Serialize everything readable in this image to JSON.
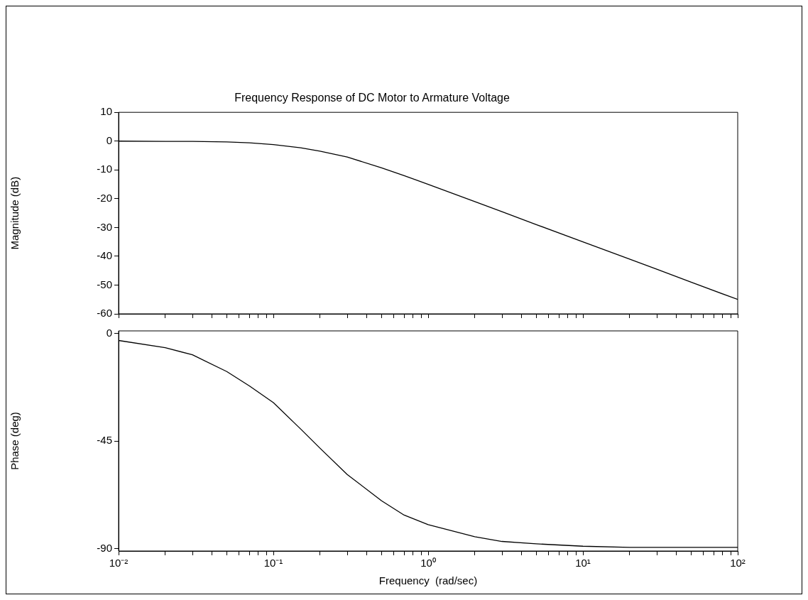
{
  "chart_data": [
    {
      "type": "line",
      "title": "Frequency Response of DC Motor to Armature Voltage",
      "ylabel": "Magnitude (dB)",
      "log": "x",
      "grid": false,
      "tick_labels": "y",
      "xlim": [
        0.01,
        100
      ],
      "ylim": [
        -60,
        10
      ],
      "xticks": [
        {
          "value": 0.01,
          "label": null
        },
        {
          "value": 0.02,
          "label": null
        },
        {
          "value": 0.03,
          "label": null
        },
        {
          "value": 0.04,
          "label": null
        },
        {
          "value": 0.05,
          "label": null
        },
        {
          "value": 0.06,
          "label": null
        },
        {
          "value": 0.07,
          "label": null
        },
        {
          "value": 0.08,
          "label": null
        },
        {
          "value": 0.09,
          "label": null
        },
        {
          "value": 0.1,
          "label": null
        },
        {
          "value": 0.2,
          "label": null
        },
        {
          "value": 0.3,
          "label": null
        },
        {
          "value": 0.4,
          "label": null
        },
        {
          "value": 0.5,
          "label": null
        },
        {
          "value": 0.6,
          "label": null
        },
        {
          "value": 0.7,
          "label": null
        },
        {
          "value": 0.8,
          "label": null
        },
        {
          "value": 0.9,
          "label": null
        },
        {
          "value": 1,
          "label": null
        },
        {
          "value": 2,
          "label": null
        },
        {
          "value": 3,
          "label": null
        },
        {
          "value": 4,
          "label": null
        },
        {
          "value": 5,
          "label": null
        },
        {
          "value": 6,
          "label": null
        },
        {
          "value": 7,
          "label": null
        },
        {
          "value": 8,
          "label": null
        },
        {
          "value": 9,
          "label": null
        },
        {
          "value": 10,
          "label": null
        },
        {
          "value": 20,
          "label": null
        },
        {
          "value": 30,
          "label": null
        },
        {
          "value": 40,
          "label": null
        },
        {
          "value": 50,
          "label": null
        },
        {
          "value": 60,
          "label": null
        },
        {
          "value": 70,
          "label": null
        },
        {
          "value": 80,
          "label": null
        },
        {
          "value": 90,
          "label": null
        },
        {
          "value": 100,
          "label": null
        }
      ],
      "yticks": [
        -60,
        -50,
        -40,
        -30,
        -20,
        -10,
        0,
        10
      ],
      "x": [
        0.01,
        0.02,
        0.03,
        0.05,
        0.07,
        0.1,
        0.15,
        0.2,
        0.3,
        0.5,
        0.7,
        1,
        2,
        3,
        5,
        10,
        20,
        30,
        50,
        100
      ],
      "series": [
        {
          "color": "#000000",
          "values": [
            0,
            -0.1,
            -0.1,
            -0.3,
            -0.6,
            -1.2,
            -2.3,
            -3.5,
            -5.5,
            -9.3,
            -12,
            -15,
            -21,
            -24.5,
            -29,
            -35,
            -41,
            -44.5,
            -49,
            -55
          ]
        }
      ]
    },
    {
      "type": "line",
      "xlabel": "Frequency  (rad/sec)",
      "ylabel": "Phase (deg)",
      "log": "x",
      "grid": false,
      "xlim": [
        0.01,
        100
      ],
      "ylim": [
        -91,
        1
      ],
      "xticks": [
        {
          "value": 0.01,
          "label": "10⁻²"
        },
        {
          "value": 0.02,
          "label": null
        },
        {
          "value": 0.03,
          "label": null
        },
        {
          "value": 0.04,
          "label": null
        },
        {
          "value": 0.05,
          "label": null
        },
        {
          "value": 0.06,
          "label": null
        },
        {
          "value": 0.07,
          "label": null
        },
        {
          "value": 0.08,
          "label": null
        },
        {
          "value": 0.09,
          "label": null
        },
        {
          "value": 0.1,
          "label": "10⁻¹"
        },
        {
          "value": 0.2,
          "label": null
        },
        {
          "value": 0.3,
          "label": null
        },
        {
          "value": 0.4,
          "label": null
        },
        {
          "value": 0.5,
          "label": null
        },
        {
          "value": 0.6,
          "label": null
        },
        {
          "value": 0.7,
          "label": null
        },
        {
          "value": 0.8,
          "label": null
        },
        {
          "value": 0.9,
          "label": null
        },
        {
          "value": 1,
          "label": "10⁰"
        },
        {
          "value": 2,
          "label": null
        },
        {
          "value": 3,
          "label": null
        },
        {
          "value": 4,
          "label": null
        },
        {
          "value": 5,
          "label": null
        },
        {
          "value": 6,
          "label": null
        },
        {
          "value": 7,
          "label": null
        },
        {
          "value": 8,
          "label": null
        },
        {
          "value": 9,
          "label": null
        },
        {
          "value": 10,
          "label": "10¹"
        },
        {
          "value": 20,
          "label": null
        },
        {
          "value": 30,
          "label": null
        },
        {
          "value": 40,
          "label": null
        },
        {
          "value": 50,
          "label": null
        },
        {
          "value": 60,
          "label": null
        },
        {
          "value": 70,
          "label": null
        },
        {
          "value": 80,
          "label": null
        },
        {
          "value": 90,
          "label": null
        },
        {
          "value": 100,
          "label": "10²"
        }
      ],
      "yticks": [
        -90,
        -45,
        0
      ],
      "x": [
        0.01,
        0.02,
        0.03,
        0.05,
        0.07,
        0.1,
        0.15,
        0.2,
        0.3,
        0.5,
        0.7,
        1,
        2,
        3,
        5,
        10,
        20,
        30,
        50,
        100
      ],
      "series": [
        {
          "color": "#000000",
          "values": [
            -3,
            -6,
            -9,
            -16,
            -22,
            -29,
            -40,
            -48,
            -59,
            -70,
            -76,
            -80,
            -85,
            -87,
            -88,
            -89,
            -89.5,
            -89.5,
            -89.5,
            -89.5
          ]
        }
      ]
    }
  ]
}
